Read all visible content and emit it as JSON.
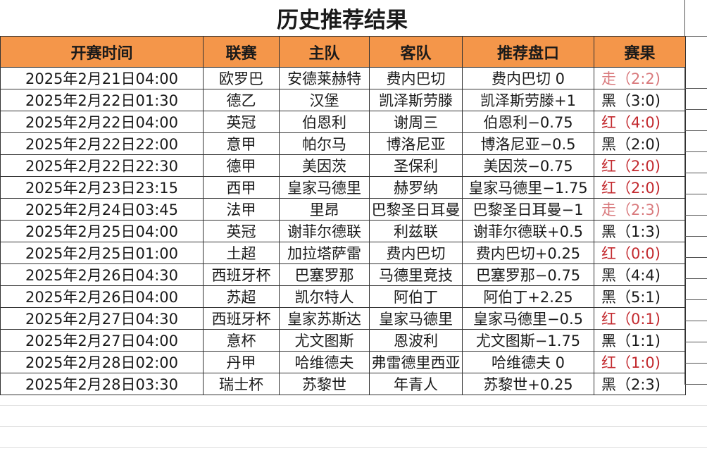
{
  "title": "历史推荐结果",
  "headers": [
    "开赛时间",
    "联赛",
    "主队",
    "客队",
    "推荐盘口",
    "赛果"
  ],
  "colors": {
    "header_bg": "#f4964a",
    "win": "#c32a2f",
    "push": "#d97a7d",
    "loss": "#1a1a1a"
  },
  "rows": [
    {
      "time": "2025年2月21日04:00",
      "league": "欧罗巴",
      "home": "安德莱赫特",
      "away": "费内巴切",
      "pick": "费内巴切 0",
      "result": "走（2:2)",
      "type": "draw"
    },
    {
      "time": "2025年2月22日01:30",
      "league": "德乙",
      "home": "汉堡",
      "away": "凯泽斯劳滕",
      "pick": "凯泽斯劳滕+1",
      "result": "黑（3:0)",
      "type": "black"
    },
    {
      "time": "2025年2月22日04:00",
      "league": "英冠",
      "home": "伯恩利",
      "away": "谢周三",
      "pick": "伯恩利−0.75",
      "result": "红（4:0)",
      "type": "red"
    },
    {
      "time": "2025年2月22日22:00",
      "league": "意甲",
      "home": "帕尔马",
      "away": "博洛尼亚",
      "pick": "博洛尼亚−0.5",
      "result": "黑（2:0)",
      "type": "black"
    },
    {
      "time": "2025年2月22日22:30",
      "league": "德甲",
      "home": "美因茨",
      "away": "圣保利",
      "pick": "美因茨−0.75",
      "result": "红（2:0)",
      "type": "red"
    },
    {
      "time": "2025年2月23日23:15",
      "league": "西甲",
      "home": "皇家马德里",
      "away": "赫罗纳",
      "pick": "皇家马德里−1.75",
      "result": "红（2:0)",
      "type": "red"
    },
    {
      "time": "2025年2月24日03:45",
      "league": "法甲",
      "home": "里昂",
      "away": "巴黎圣日耳曼",
      "pick": "巴黎圣日耳曼−1",
      "result": "走（2:3)",
      "type": "draw"
    },
    {
      "time": "2025年2月25日04:00",
      "league": "英冠",
      "home": "谢菲尔德联",
      "away": "利兹联",
      "pick": "谢菲尔德联+0.5",
      "result": "黑（1:3)",
      "type": "black"
    },
    {
      "time": "2025年2月25日01:00",
      "league": "土超",
      "home": "加拉塔萨雷",
      "away": "费内巴切",
      "pick": "费内巴切+0.25",
      "result": "红（0:0)",
      "type": "red"
    },
    {
      "time": "2025年2月26日04:30",
      "league": "西班牙杯",
      "home": "巴塞罗那",
      "away": "马德里竞技",
      "pick": "巴塞罗那−0.75",
      "result": "黑（4:4)",
      "type": "black"
    },
    {
      "time": "2025年2月26日04:00",
      "league": "苏超",
      "home": "凯尔特人",
      "away": "阿伯丁",
      "pick": "阿伯丁+2.25",
      "result": "黑（5:1)",
      "type": "black"
    },
    {
      "time": "2025年2月27日04:30",
      "league": "西班牙杯",
      "home": "皇家苏斯达",
      "away": "皇家马德里",
      "pick": "皇家马德里−0.5",
      "result": "红（0:1)",
      "type": "red"
    },
    {
      "time": "2025年2月27日04:00",
      "league": "意杯",
      "home": "尤文图斯",
      "away": "恩波利",
      "pick": "尤文图斯−1.75",
      "result": "黑（1:1)",
      "type": "black"
    },
    {
      "time": "2025年2月28日02:00",
      "league": "丹甲",
      "home": "哈维德夫",
      "away": "弗雷德里西亚",
      "pick": "哈维德夫 0",
      "result": "红（1:0)",
      "type": "red"
    },
    {
      "time": "2025年2月28日03:30",
      "league": "瑞士杯",
      "home": "苏黎世",
      "away": "年青人",
      "pick": "苏黎世+0.25",
      "result": "黑（2:3)",
      "type": "black"
    }
  ]
}
